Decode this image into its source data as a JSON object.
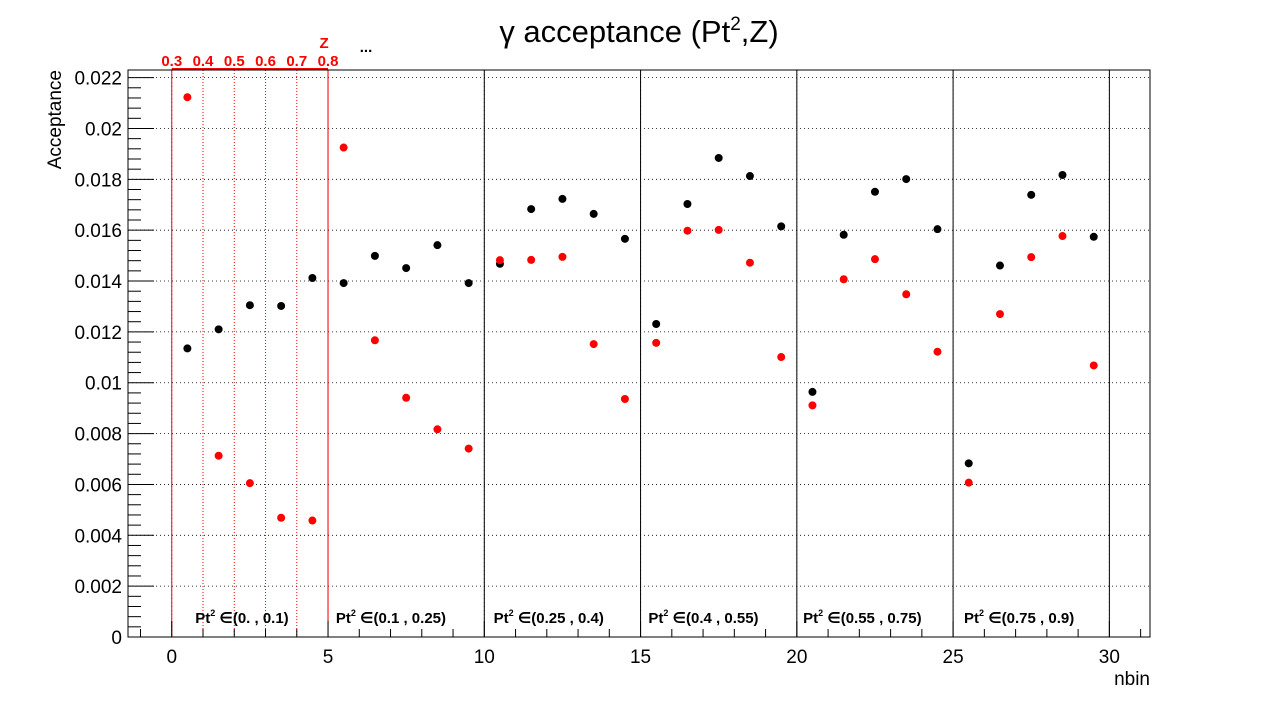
{
  "chart_data": {
    "type": "scatter",
    "title": "γ acceptance (Pt²,Z)",
    "title_parts": {
      "prefix": "γ acceptance (Pt",
      "sup": "2",
      "suffix": ",Z)"
    },
    "xlabel": "nbin",
    "ylabel": "Acceptance",
    "xlim": [
      -1.4,
      31.3
    ],
    "ylim": [
      0,
      0.0223
    ],
    "grid": true,
    "x_ticks": [
      0,
      5,
      10,
      15,
      20,
      25,
      30
    ],
    "y_ticks": [
      0,
      0.002,
      0.004,
      0.006,
      0.008,
      0.01,
      0.012,
      0.014,
      0.016,
      0.018,
      0.02,
      0.022
    ],
    "y_tick_labels": [
      "0",
      "0.002",
      "0.004",
      "0.006",
      "0.008",
      "0.01",
      "0.012",
      "0.014",
      "0.016",
      "0.018",
      "0.02",
      "0.022"
    ],
    "series": [
      {
        "color": "#000000",
        "x": [
          0.5,
          1.5,
          2.5,
          3.5,
          4.5,
          5.5,
          6.5,
          7.5,
          8.5,
          9.5,
          10.5,
          11.5,
          12.5,
          13.5,
          14.5,
          15.5,
          16.5,
          17.5,
          18.5,
          19.5,
          20.5,
          21.5,
          22.5,
          23.5,
          24.5,
          25.5,
          26.5,
          27.5,
          28.5,
          29.5
        ],
        "y": [
          0.01135,
          0.0121,
          0.01305,
          0.01302,
          0.01412,
          0.01392,
          0.01499,
          0.01451,
          0.01541,
          0.01392,
          0.01468,
          0.01683,
          0.01723,
          0.01664,
          0.01566,
          0.01231,
          0.01703,
          0.01884,
          0.01813,
          0.01615,
          0.00964,
          0.01582,
          0.01751,
          0.01801,
          0.01604,
          0.00683,
          0.01461,
          0.01739,
          0.01817,
          0.01574
        ]
      },
      {
        "color": "#ff0000",
        "x": [
          0.5,
          1.5,
          2.5,
          3.5,
          4.5,
          5.5,
          6.5,
          7.5,
          8.5,
          9.5,
          10.5,
          11.5,
          12.5,
          13.5,
          14.5,
          15.5,
          16.5,
          17.5,
          18.5,
          19.5,
          20.5,
          21.5,
          22.5,
          23.5,
          24.5,
          25.5,
          26.5,
          27.5,
          28.5,
          29.5
        ],
        "y": [
          0.02123,
          0.00713,
          0.00605,
          0.00469,
          0.00458,
          0.01925,
          0.01167,
          0.00941,
          0.00817,
          0.00741,
          0.01482,
          0.01483,
          0.01495,
          0.01152,
          0.00936,
          0.01157,
          0.01598,
          0.01601,
          0.01472,
          0.01101,
          0.00911,
          0.01407,
          0.01486,
          0.01348,
          0.01122,
          0.00607,
          0.0127,
          0.01494,
          0.01577,
          0.01068
        ]
      }
    ],
    "group_dividers_x": [
      5,
      10,
      15,
      20,
      25,
      30
    ],
    "z_dividers_x": [
      1,
      2,
      3,
      4
    ],
    "z_box": {
      "x0": 0,
      "x1": 5
    },
    "z_title": "Z",
    "z_ticks": [
      {
        "x": 0,
        "label": "0.3"
      },
      {
        "x": 1,
        "label": "0.4"
      },
      {
        "x": 2,
        "label": "0.5"
      },
      {
        "x": 3,
        "label": "0.6"
      },
      {
        "x": 4,
        "label": "0.7"
      },
      {
        "x": 5,
        "label": "0.8"
      }
    ],
    "z_ellipsis": "...",
    "bin_labels": [
      {
        "x": 0.75,
        "pre": "Pt",
        "sup": "2",
        "post": " ∈(0. , 0.1)"
      },
      {
        "x": 5.25,
        "pre": "Pt",
        "sup": "2",
        "post": " ∈(0.1 , 0.25)"
      },
      {
        "x": 10.3,
        "pre": "Pt",
        "sup": "2",
        "post": " ∈(0.25 , 0.4)"
      },
      {
        "x": 15.25,
        "pre": "Pt",
        "sup": "2",
        "post": " ∈(0.4 , 0.55)"
      },
      {
        "x": 20.2,
        "pre": "Pt",
        "sup": "2",
        "post": " ∈(0.55 , 0.75)"
      },
      {
        "x": 25.35,
        "pre": "Pt",
        "sup": "2",
        "post": " ∈(0.75 , 0.9)"
      }
    ]
  }
}
